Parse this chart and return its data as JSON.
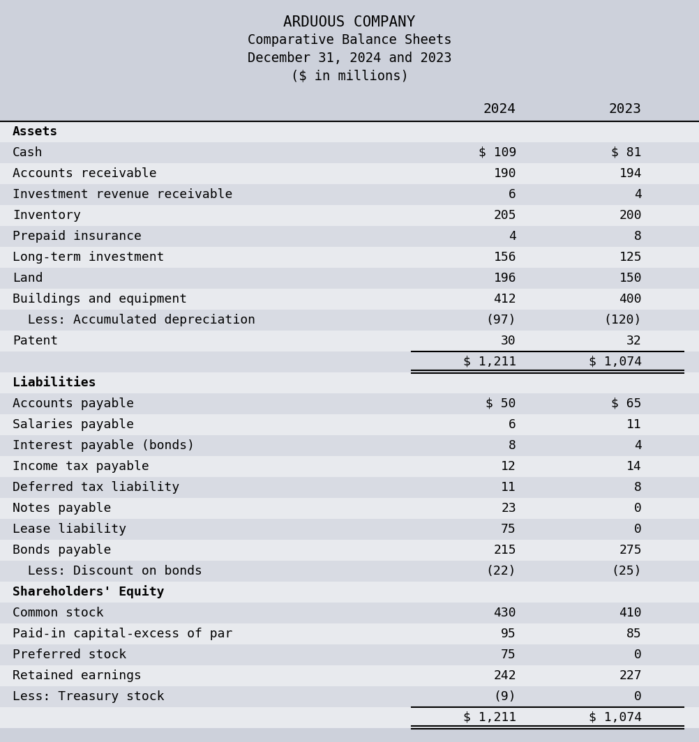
{
  "title_lines": [
    "ARDUOUS COMPANY",
    "Comparative Balance Sheets",
    "December 31, 2024 and 2023",
    "($ in millions)"
  ],
  "header_bg": "#cdd1db",
  "row_bg_even": "#e8eaee",
  "row_bg_odd": "#d8dbe3",
  "font_family": "DejaVu Sans Mono",
  "col1_header": "2024",
  "col2_header": "2023",
  "rows": [
    {
      "label": "Assets",
      "v2024": "",
      "v2023": "",
      "bold": true,
      "section_header": true,
      "pre_line": false,
      "post_double": false
    },
    {
      "label": "Cash",
      "v2024": "$ 109",
      "v2023": "$ 81",
      "bold": false,
      "section_header": false,
      "pre_line": false,
      "post_double": false
    },
    {
      "label": "Accounts receivable",
      "v2024": "190",
      "v2023": "194",
      "bold": false,
      "section_header": false,
      "pre_line": false,
      "post_double": false
    },
    {
      "label": "Investment revenue receivable",
      "v2024": "6",
      "v2023": "4",
      "bold": false,
      "section_header": false,
      "pre_line": false,
      "post_double": false
    },
    {
      "label": "Inventory",
      "v2024": "205",
      "v2023": "200",
      "bold": false,
      "section_header": false,
      "pre_line": false,
      "post_double": false
    },
    {
      "label": "Prepaid insurance",
      "v2024": "4",
      "v2023": "8",
      "bold": false,
      "section_header": false,
      "pre_line": false,
      "post_double": false
    },
    {
      "label": "Long-term investment",
      "v2024": "156",
      "v2023": "125",
      "bold": false,
      "section_header": false,
      "pre_line": false,
      "post_double": false
    },
    {
      "label": "Land",
      "v2024": "196",
      "v2023": "150",
      "bold": false,
      "section_header": false,
      "pre_line": false,
      "post_double": false
    },
    {
      "label": "Buildings and equipment",
      "v2024": "412",
      "v2023": "400",
      "bold": false,
      "section_header": false,
      "pre_line": false,
      "post_double": false
    },
    {
      "label": "  Less: Accumulated depreciation",
      "v2024": "(97)",
      "v2023": "(120)",
      "bold": false,
      "section_header": false,
      "pre_line": false,
      "post_double": false
    },
    {
      "label": "Patent",
      "v2024": "30",
      "v2023": "32",
      "bold": false,
      "section_header": false,
      "pre_line": false,
      "post_double": false
    },
    {
      "label": "",
      "v2024": "$ 1,211",
      "v2023": "$ 1,074",
      "bold": false,
      "section_header": false,
      "pre_line": true,
      "post_double": true
    },
    {
      "label": "Liabilities",
      "v2024": "",
      "v2023": "",
      "bold": true,
      "section_header": true,
      "pre_line": false,
      "post_double": false
    },
    {
      "label": "Accounts payable",
      "v2024": "$ 50",
      "v2023": "$ 65",
      "bold": false,
      "section_header": false,
      "pre_line": false,
      "post_double": false
    },
    {
      "label": "Salaries payable",
      "v2024": "6",
      "v2023": "11",
      "bold": false,
      "section_header": false,
      "pre_line": false,
      "post_double": false
    },
    {
      "label": "Interest payable (bonds)",
      "v2024": "8",
      "v2023": "4",
      "bold": false,
      "section_header": false,
      "pre_line": false,
      "post_double": false
    },
    {
      "label": "Income tax payable",
      "v2024": "12",
      "v2023": "14",
      "bold": false,
      "section_header": false,
      "pre_line": false,
      "post_double": false
    },
    {
      "label": "Deferred tax liability",
      "v2024": "11",
      "v2023": "8",
      "bold": false,
      "section_header": false,
      "pre_line": false,
      "post_double": false
    },
    {
      "label": "Notes payable",
      "v2024": "23",
      "v2023": "0",
      "bold": false,
      "section_header": false,
      "pre_line": false,
      "post_double": false
    },
    {
      "label": "Lease liability",
      "v2024": "75",
      "v2023": "0",
      "bold": false,
      "section_header": false,
      "pre_line": false,
      "post_double": false
    },
    {
      "label": "Bonds payable",
      "v2024": "215",
      "v2023": "275",
      "bold": false,
      "section_header": false,
      "pre_line": false,
      "post_double": false
    },
    {
      "label": "  Less: Discount on bonds",
      "v2024": "(22)",
      "v2023": "(25)",
      "bold": false,
      "section_header": false,
      "pre_line": false,
      "post_double": false
    },
    {
      "label": "Shareholders' Equity",
      "v2024": "",
      "v2023": "",
      "bold": true,
      "section_header": true,
      "pre_line": false,
      "post_double": false
    },
    {
      "label": "Common stock",
      "v2024": "430",
      "v2023": "410",
      "bold": false,
      "section_header": false,
      "pre_line": false,
      "post_double": false
    },
    {
      "label": "Paid-in capital-excess of par",
      "v2024": "95",
      "v2023": "85",
      "bold": false,
      "section_header": false,
      "pre_line": false,
      "post_double": false
    },
    {
      "label": "Preferred stock",
      "v2024": "75",
      "v2023": "0",
      "bold": false,
      "section_header": false,
      "pre_line": false,
      "post_double": false
    },
    {
      "label": "Retained earnings",
      "v2024": "242",
      "v2023": "227",
      "bold": false,
      "section_header": false,
      "pre_line": false,
      "post_double": false
    },
    {
      "label": "Less: Treasury stock",
      "v2024": "(9)",
      "v2023": "0",
      "bold": false,
      "section_header": false,
      "pre_line": false,
      "post_double": false
    },
    {
      "label": "",
      "v2024": "$ 1,211",
      "v2023": "$ 1,074",
      "bold": false,
      "section_header": false,
      "pre_line": true,
      "post_double": true
    }
  ]
}
